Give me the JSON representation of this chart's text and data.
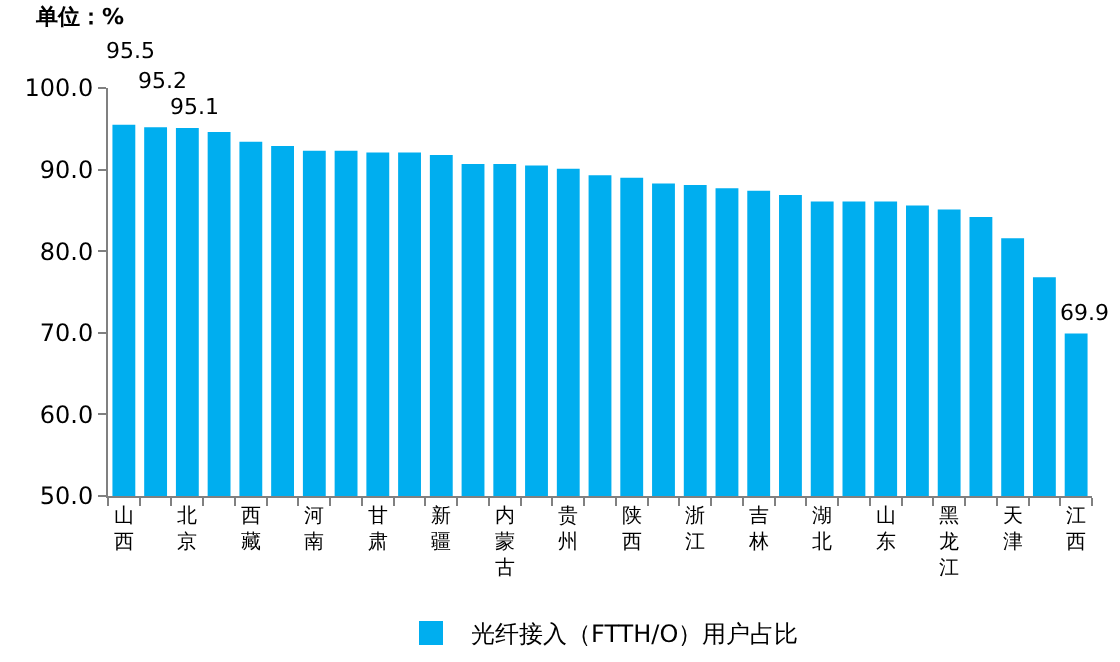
{
  "chart_data": {
    "type": "bar",
    "ylabel": "单位：%",
    "categories": [
      "山西",
      null,
      "北京",
      null,
      "西藏",
      null,
      "河南",
      null,
      "甘肃",
      null,
      "新疆",
      null,
      "内蒙古",
      null,
      "贵州",
      null,
      "陕西",
      null,
      "浙江",
      null,
      "吉林",
      null,
      "湖北",
      null,
      "山东",
      null,
      "黑龙江",
      null,
      "天津",
      null,
      "江西"
    ],
    "series": [
      {
        "name": "光纤接入（FTTH/O）用户占比",
        "color": "#00aeef",
        "values": [
          95.5,
          95.2,
          95.1,
          94.6,
          93.4,
          92.9,
          92.3,
          92.3,
          92.1,
          92.1,
          91.8,
          90.7,
          90.7,
          90.5,
          90.1,
          89.3,
          89.0,
          88.3,
          88.1,
          87.7,
          87.4,
          86.9,
          86.1,
          86.1,
          86.1,
          85.6,
          85.1,
          84.2,
          81.6,
          76.8,
          69.9
        ],
        "value_labels": [
          "95.5",
          "95.2",
          "95.1",
          null,
          null,
          null,
          null,
          null,
          null,
          null,
          null,
          null,
          null,
          null,
          null,
          null,
          null,
          null,
          null,
          null,
          null,
          null,
          null,
          null,
          null,
          null,
          null,
          null,
          null,
          null,
          "69.9"
        ]
      }
    ],
    "ylim": [
      50,
      100
    ],
    "yticks": [
      {
        "value": 50,
        "label": "50.0"
      },
      {
        "value": 60,
        "label": "60.0"
      },
      {
        "value": 70,
        "label": "70.0"
      },
      {
        "value": 80,
        "label": "80.0"
      },
      {
        "value": 90,
        "label": "90.0"
      },
      {
        "value": 100,
        "label": "100.0"
      }
    ],
    "legend": "bottom"
  }
}
